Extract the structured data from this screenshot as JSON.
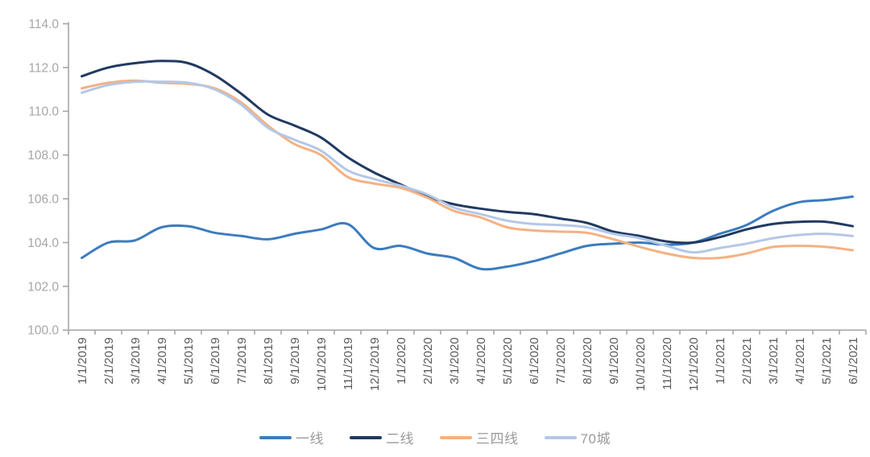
{
  "chart_data": {
    "type": "line",
    "title": "",
    "grid": false,
    "background": "#FFFFFF",
    "legend_position": "bottom",
    "axis_color": "#A6A6A6",
    "y_label_color": "#A6A6A6",
    "x_label_color": "#595959",
    "y_axis": {
      "min": 100.0,
      "max": 114.0,
      "step": 2.0,
      "tick_labels": [
        "100.0",
        "102.0",
        "104.0",
        "106.0",
        "108.0",
        "110.0",
        "112.0",
        "114.0"
      ]
    },
    "x_labels": [
      "1/1/2019",
      "2/1/2019",
      "3/1/2019",
      "4/1/2019",
      "5/1/2019",
      "6/1/2019",
      "7/1/2019",
      "8/1/2019",
      "9/1/2019",
      "10/1/2019",
      "11/1/2019",
      "12/1/2019",
      "1/1/2020",
      "2/1/2020",
      "3/1/2020",
      "4/1/2020",
      "5/1/2020",
      "6/1/2020",
      "7/1/2020",
      "8/1/2020",
      "9/1/2020",
      "10/1/2020",
      "11/1/2020",
      "12/1/2020",
      "1/1/2021",
      "2/1/2021",
      "3/1/2021",
      "4/1/2021",
      "5/1/2021",
      "6/1/2021"
    ],
    "series": [
      {
        "id": "first-tier",
        "name": "一线",
        "color": "#3B7CBE",
        "values": [
          103.3,
          104.0,
          104.1,
          104.7,
          104.75,
          104.45,
          104.3,
          104.15,
          104.4,
          104.6,
          104.85,
          103.75,
          103.85,
          103.5,
          103.3,
          102.8,
          102.9,
          103.15,
          103.5,
          103.85,
          103.95,
          104.0,
          103.9,
          104.0,
          104.4,
          104.8,
          105.45,
          105.85,
          105.95,
          106.1
        ]
      },
      {
        "id": "second-tier",
        "name": "二线",
        "color": "#203A61",
        "values": [
          111.6,
          112.0,
          112.2,
          112.3,
          112.2,
          111.65,
          110.8,
          109.85,
          109.35,
          108.8,
          107.9,
          107.2,
          106.65,
          106.1,
          105.75,
          105.55,
          105.4,
          105.3,
          105.1,
          104.9,
          104.5,
          104.3,
          104.05,
          104.0,
          104.25,
          104.6,
          104.85,
          104.95,
          104.95,
          104.75
        ]
      },
      {
        "id": "third-fourth-tier",
        "name": "三四线",
        "color": "#F4B183",
        "values": [
          111.05,
          111.3,
          111.4,
          111.3,
          111.25,
          111.05,
          110.4,
          109.35,
          108.5,
          108.0,
          107.0,
          106.7,
          106.5,
          106.05,
          105.45,
          105.15,
          104.7,
          104.55,
          104.5,
          104.45,
          104.15,
          103.8,
          103.5,
          103.3,
          103.3,
          103.5,
          103.8,
          103.85,
          103.8,
          103.65
        ]
      },
      {
        "id": "seventy-cities",
        "name": "70城",
        "color": "#B4C7E7",
        "values": [
          110.85,
          111.2,
          111.35,
          111.35,
          111.3,
          111.0,
          110.3,
          109.25,
          108.7,
          108.2,
          107.3,
          106.9,
          106.6,
          106.2,
          105.6,
          105.3,
          105.0,
          104.85,
          104.8,
          104.7,
          104.4,
          104.2,
          103.85,
          103.55,
          103.75,
          103.95,
          104.2,
          104.35,
          104.4,
          104.3
        ]
      }
    ]
  }
}
